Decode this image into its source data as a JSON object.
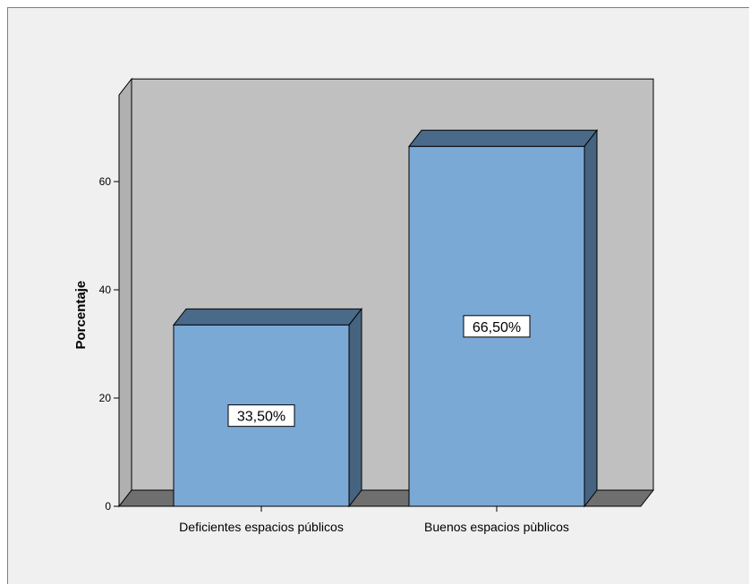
{
  "chart_data": {
    "type": "bar",
    "categories": [
      "Deficientes espacios públicos",
      "Buenos espacios pùblicos"
    ],
    "values": [
      33.5,
      66.5
    ],
    "data_labels": [
      "33,50%",
      "66,50%"
    ],
    "ylabel": "Porcentaje",
    "xlabel": "",
    "yticks": [
      0,
      20,
      40,
      60
    ],
    "ylim": [
      0,
      76
    ],
    "grid": false,
    "style": "3d",
    "colors": {
      "bar_front": "#7ba9d6",
      "bar_side": "#46647f",
      "bar_top": "#4a6a8a",
      "back_wall": "#c0c0c0",
      "left_wall": "#b0b0b0",
      "floor": "#6f6f6f",
      "frame": "#f0f0f0"
    }
  }
}
